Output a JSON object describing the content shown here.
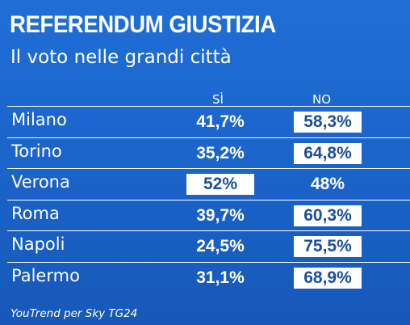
{
  "chart_data": {
    "type": "table",
    "title": "REFERENDUM GIUSTIZIA",
    "subtitle": "Il voto nelle grandi città",
    "columns": [
      "SÌ",
      "NO"
    ],
    "rows": [
      {
        "city": "Milano",
        "si": "41,7%",
        "no": "58,3%",
        "winner": "no"
      },
      {
        "city": "Torino",
        "si": "35,2%",
        "no": "64,8%",
        "winner": "no"
      },
      {
        "city": "Verona",
        "si": "52%",
        "no": "48%",
        "winner": "si"
      },
      {
        "city": "Roma",
        "si": "39,7%",
        "no": "60,3%",
        "winner": "no"
      },
      {
        "city": "Napoli",
        "si": "24,5%",
        "no": "75,5%",
        "winner": "no"
      },
      {
        "city": "Palermo",
        "si": "31,1%",
        "no": "68,9%",
        "winner": "no"
      }
    ],
    "source": "YouTrend per Sky TG24",
    "colors": {
      "background": "#1f6fd6",
      "highlight_bg": "#ffffff",
      "highlight_text": "#1a4f9c"
    }
  }
}
